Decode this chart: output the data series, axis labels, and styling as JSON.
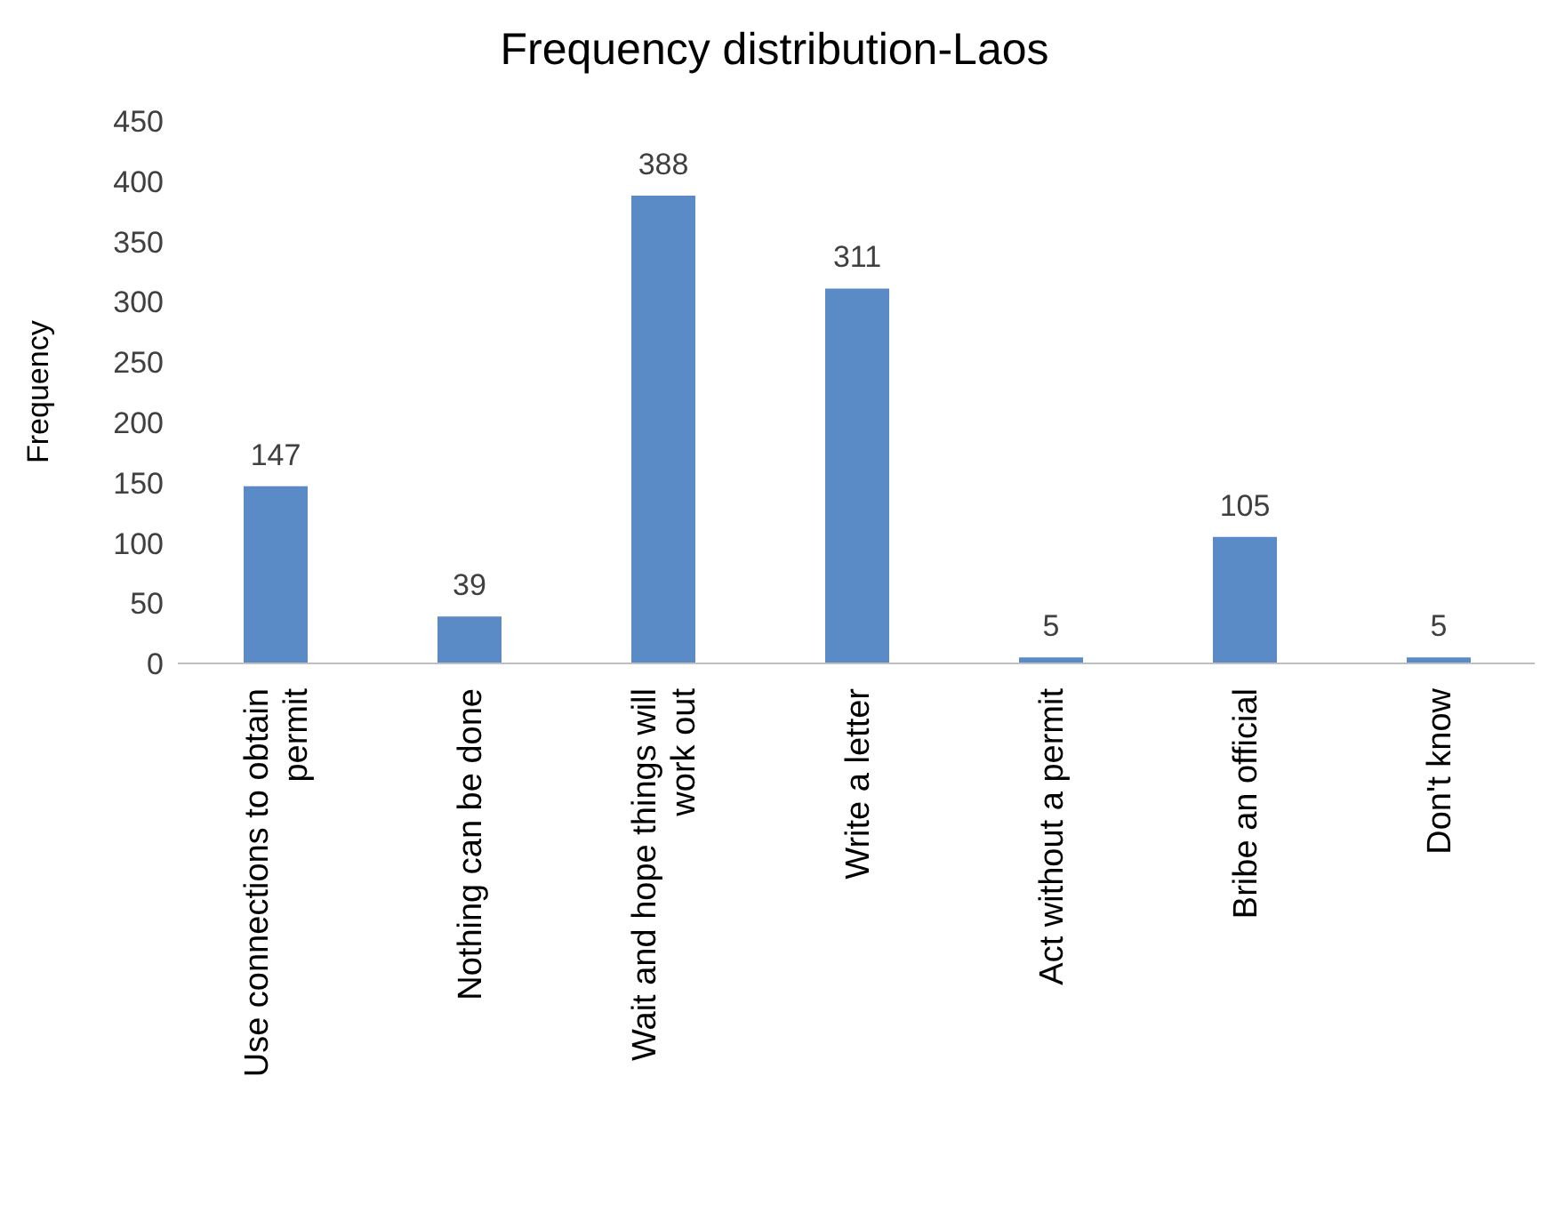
{
  "chart_data": {
    "type": "bar",
    "title": "Frequency distribution-Laos",
    "ylabel": "Frequency",
    "categories": [
      "Use connections to obtain permit",
      "Nothing can be done",
      "Wait and hope things will work out",
      "Write a letter",
      "Act without a permit",
      "Bribe an official",
      "Don't know"
    ],
    "values": [
      147,
      39,
      388,
      311,
      5,
      105,
      5
    ],
    "color": "#5b8bc7",
    "ylim": [
      0,
      450
    ],
    "yticks": [
      0,
      50,
      100,
      150,
      200,
      250,
      300,
      350,
      400,
      450
    ],
    "data_labels": true
  }
}
